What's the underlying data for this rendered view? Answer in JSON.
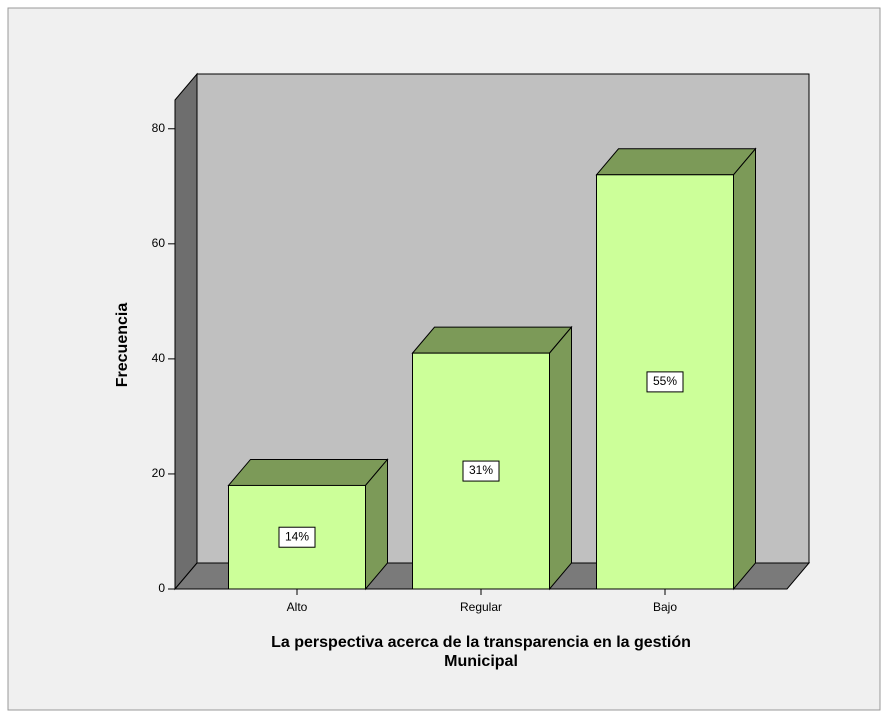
{
  "chart_data": {
    "type": "bar3d",
    "x_label": [
      "La perspectiva acerca de la transparencia en la gestión",
      "Municipal"
    ],
    "y_label": "Frecuencia",
    "categories": [
      "Alto",
      "Regular",
      "Bajo"
    ],
    "values": [
      18,
      41,
      72
    ],
    "percentage_labels": [
      "14%",
      "31%",
      "55%"
    ],
    "color": "#ccff99",
    "ylim": [
      0,
      85
    ],
    "yticks": [
      0,
      20,
      40,
      60,
      80
    ]
  }
}
